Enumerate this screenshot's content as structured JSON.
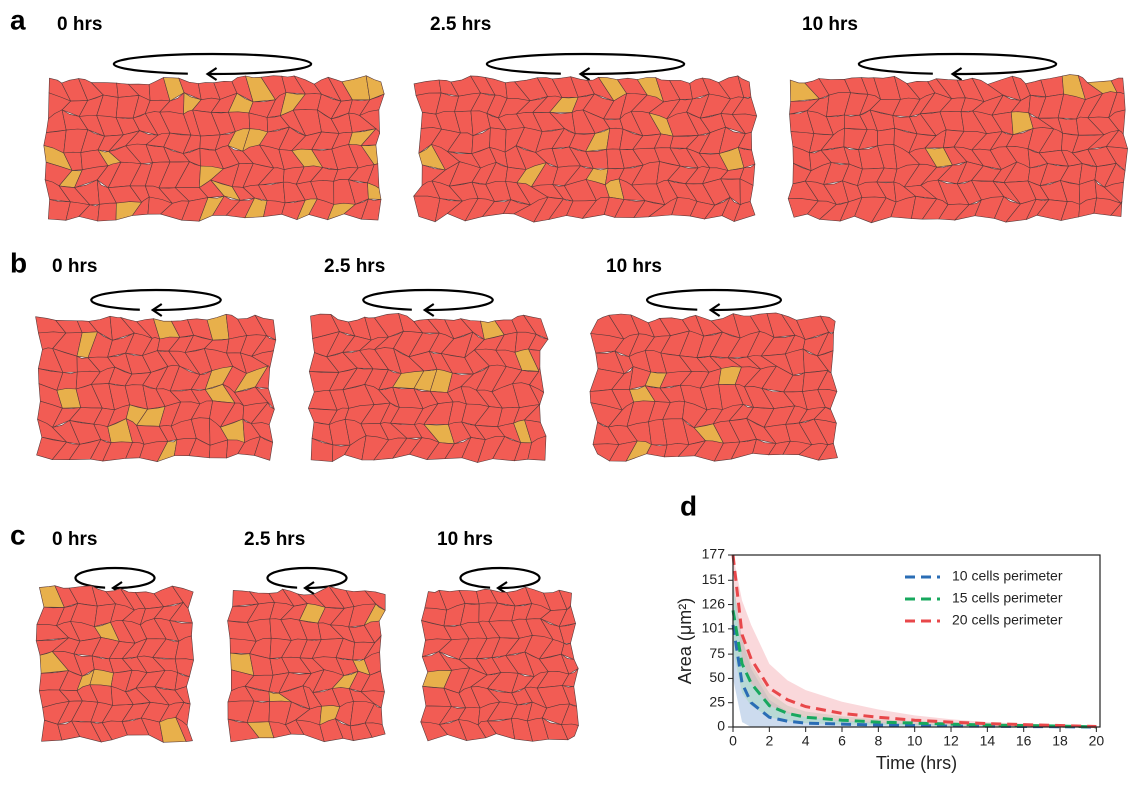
{
  "panels": [
    {
      "label": "a",
      "frames": [
        {
          "time": "0 hrs"
        },
        {
          "time": "2.5 hrs"
        },
        {
          "time": "10 hrs"
        }
      ]
    },
    {
      "label": "b",
      "frames": [
        {
          "time": "0 hrs"
        },
        {
          "time": "2.5 hrs"
        },
        {
          "time": "10 hrs"
        }
      ]
    },
    {
      "label": "c",
      "frames": [
        {
          "time": "0 hrs"
        },
        {
          "time": "2.5 hrs"
        },
        {
          "time": "10 hrs"
        }
      ]
    }
  ],
  "chart_data": {
    "type": "line",
    "panel_label": "d",
    "xlabel": "Time (hrs)",
    "ylabel": "Area (μm²)",
    "x": [
      0,
      0.5,
      1,
      2,
      3,
      4,
      6,
      8,
      10,
      12,
      14,
      16,
      18,
      20
    ],
    "xlim": [
      0,
      20.2
    ],
    "xticks": [
      0,
      2,
      4,
      6,
      8,
      10,
      12,
      14,
      16,
      18,
      20
    ],
    "ylim": [
      0,
      177
    ],
    "yticks": [
      0,
      25,
      50,
      75,
      101,
      126,
      151,
      177
    ],
    "series": [
      {
        "name": "10 cells perimeter",
        "color": "#2a6db5",
        "band_color": "#8fb0da",
        "values": [
          105,
          45,
          25,
          10,
          6,
          4,
          3,
          2,
          1.5,
          1,
          0.8,
          0.5,
          0.3,
          0
        ],
        "upper": [
          150,
          90,
          60,
          28,
          16,
          10,
          7,
          5,
          3.5,
          2.5,
          1.5,
          1,
          0.5,
          0.2
        ],
        "lower": [
          50,
          5,
          0,
          0,
          0,
          0,
          0,
          0,
          0,
          0,
          0,
          0,
          0,
          0
        ]
      },
      {
        "name": "15 cells perimeter",
        "color": "#17a85e",
        "band_color": "#9fd6b5",
        "values": [
          120,
          65,
          45,
          22,
          14,
          10,
          7,
          5,
          4,
          3,
          2,
          1.5,
          1,
          0
        ],
        "upper": [
          150,
          90,
          65,
          35,
          22,
          16,
          11,
          8,
          6,
          4,
          3,
          2,
          1.2,
          0.4
        ],
        "lower": [
          80,
          35,
          22,
          10,
          6,
          4,
          2.5,
          2,
          1.5,
          1,
          0.6,
          0.4,
          0.2,
          0
        ]
      },
      {
        "name": "20 cells perimeter",
        "color": "#e8474a",
        "band_color": "#f4a9b0",
        "values": [
          177,
          95,
          70,
          40,
          28,
          21,
          14,
          10,
          7,
          5,
          3.5,
          2.5,
          1.5,
          0.5
        ],
        "upper": [
          177,
          130,
          105,
          65,
          48,
          38,
          26,
          18,
          12,
          8,
          5,
          3.5,
          2,
          0.8
        ],
        "lower": [
          150,
          70,
          45,
          22,
          14,
          10,
          6,
          4,
          3,
          2,
          1.5,
          1,
          0.5,
          0.2
        ]
      }
    ]
  }
}
